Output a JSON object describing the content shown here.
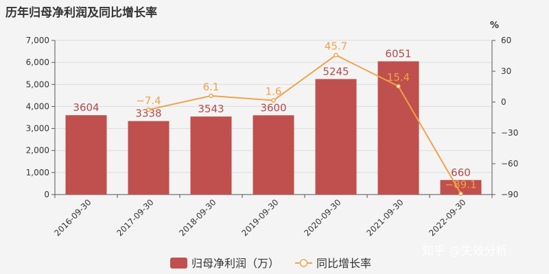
{
  "chart_data": {
    "type": "bar",
    "title": "历年归母净利润及同比增长率",
    "categories": [
      "2016-09-30",
      "2017-09-30",
      "2018-09-30",
      "2019-09-30",
      "2020-09-30",
      "2021-09-30",
      "2022-09-30"
    ],
    "series": [
      {
        "name": "归母净利润（万）",
        "type": "bar",
        "axis": "left",
        "color": "#c0504d",
        "values": [
          3604,
          3338,
          3543,
          3600,
          5245,
          6051,
          660
        ],
        "labels": [
          "3604",
          "3338",
          "3543",
          "3600",
          "5245",
          "6051",
          "660"
        ]
      },
      {
        "name": "同比增长率",
        "type": "line",
        "axis": "right",
        "color": "#f0a24a",
        "values": [
          null,
          -7.4,
          6.1,
          1.6,
          45.7,
          15.4,
          -89.1
        ],
        "labels": [
          "",
          "−7.4",
          "6.1",
          "1.6",
          "45.7",
          "15.4",
          "−89.1"
        ]
      }
    ],
    "y_left": {
      "ylim": [
        0,
        7000
      ],
      "ticks": [
        0,
        1000,
        2000,
        3000,
        4000,
        5000,
        6000,
        7000
      ],
      "tick_labels": [
        "0",
        "1,000",
        "2,000",
        "3,000",
        "4,000",
        "5,000",
        "6,000",
        "7,000"
      ]
    },
    "y_right": {
      "label": "%",
      "ylim": [
        -90,
        60
      ],
      "ticks": [
        -90,
        -60,
        -30,
        0,
        30,
        60
      ],
      "tick_labels": [
        "−90",
        "−60",
        "−30",
        "0",
        "30",
        "60"
      ]
    },
    "grid": true,
    "legend_position": "bottom-center"
  },
  "watermark": "知乎 @失效分析"
}
